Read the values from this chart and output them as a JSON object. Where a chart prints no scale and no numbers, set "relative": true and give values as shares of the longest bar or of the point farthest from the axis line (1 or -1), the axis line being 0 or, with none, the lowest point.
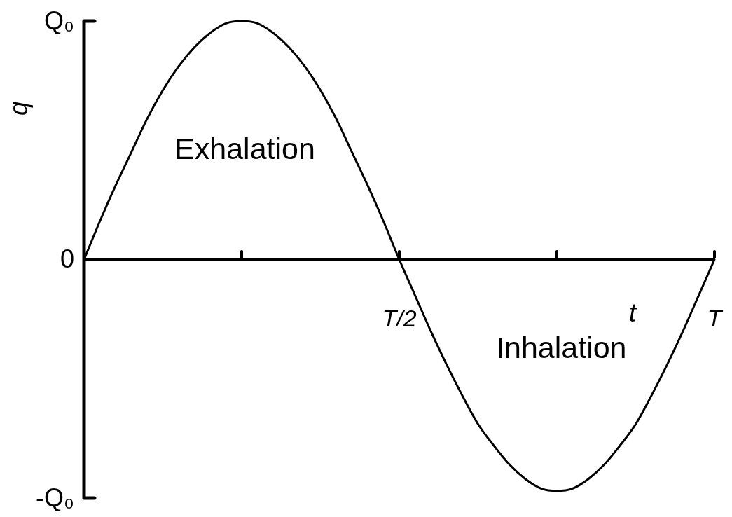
{
  "chart_data": {
    "type": "line",
    "relative": true,
    "xlabel": "t",
    "ylabel": "q",
    "annotations": [
      "Q₀",
      "0",
      "-Q₀",
      "Exhalation",
      "Inhalation"
    ],
    "categories": [
      null,
      null,
      null,
      null,
      null,
      null,
      null,
      null,
      null,
      null,
      null,
      null,
      null,
      null,
      null,
      null,
      null,
      null,
      null,
      null,
      "T/2",
      null,
      null,
      null,
      null,
      null,
      null,
      null,
      null,
      null,
      null,
      null,
      null,
      null,
      null,
      null,
      null,
      null,
      null,
      null,
      "T"
    ],
    "series": [
      {
        "color": "#000000",
        "values": [
          0,
          0.16,
          0.31,
          0.45,
          0.59,
          0.71,
          0.81,
          0.89,
          0.95,
          0.99,
          1,
          0.99,
          0.95,
          0.89,
          0.81,
          0.71,
          0.59,
          0.45,
          0.31,
          0.16,
          0,
          -0.15,
          -0.3,
          -0.44,
          -0.57,
          -0.69,
          -0.78,
          -0.86,
          -0.92,
          -0.96,
          -0.97,
          -0.96,
          -0.92,
          -0.86,
          -0.78,
          -0.69,
          -0.57,
          -0.44,
          -0.3,
          -0.15,
          0
        ]
      }
    ],
    "marker": "none",
    "line_style": "solid"
  }
}
